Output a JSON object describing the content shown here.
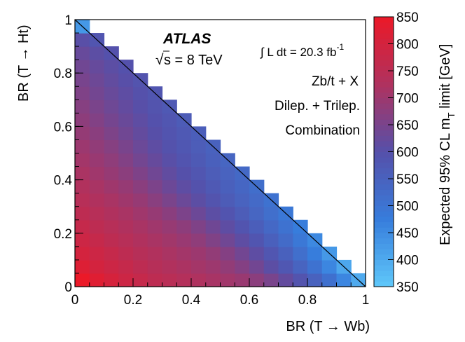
{
  "chart_data": {
    "type": "heatmap",
    "title": "",
    "xlabel": "BR (T → Wb)",
    "ylabel": "BR (T → Ht)",
    "zlabel": "Expected 95% CL m",
    "zlabel_sub": "T",
    "zlabel_suffix": " limit [GeV]",
    "xlim": [
      0,
      1
    ],
    "ylim": [
      0,
      1
    ],
    "zlim": [
      350,
      850
    ],
    "x_ticks": [
      "0",
      "0.2",
      "0.4",
      "0.6",
      "0.8",
      "1"
    ],
    "y_ticks": [
      "0",
      "0.2",
      "0.4",
      "0.6",
      "0.8",
      "1"
    ],
    "z_ticks": [
      "350",
      "400",
      "450",
      "500",
      "550",
      "600",
      "650",
      "700",
      "750",
      "800",
      "850"
    ],
    "bin_width": 0.05,
    "region": "BR(T→Wb) + BR(T→Ht) ≤ 1",
    "grid": false,
    "colorbar": "right",
    "annotations": {
      "experiment": "ATLAS",
      "energy_sqrt": "√",
      "energy_rest": "s = 8 TeV",
      "lumi_main": "∫ L dt = 20.3 fb",
      "lumi_exp": "-1",
      "line1": "Zb/t + X",
      "line2": "Dilep. + Trilep.",
      "line3": "Combination"
    },
    "z_values_by_row_yHt": [
      [
        850,
        825,
        805,
        785,
        770,
        755,
        745,
        735,
        725,
        715,
        705,
        695,
        675,
        650,
        620,
        590,
        550,
        510,
        460,
        400
      ],
      [
        820,
        800,
        785,
        770,
        755,
        740,
        730,
        720,
        710,
        700,
        685,
        665,
        640,
        610,
        580,
        545,
        505,
        460,
        405
      ],
      [
        800,
        785,
        770,
        755,
        740,
        730,
        718,
        708,
        698,
        685,
        665,
        640,
        612,
        582,
        552,
        515,
        475,
        430
      ],
      [
        785,
        770,
        755,
        742,
        728,
        716,
        706,
        694,
        680,
        660,
        637,
        612,
        585,
        555,
        525,
        490,
        455
      ],
      [
        770,
        755,
        742,
        728,
        716,
        704,
        692,
        678,
        658,
        636,
        612,
        588,
        560,
        532,
        505,
        475
      ],
      [
        755,
        742,
        728,
        716,
        704,
        690,
        674,
        654,
        632,
        610,
        588,
        565,
        540,
        515,
        490
      ],
      [
        742,
        728,
        716,
        703,
        690,
        672,
        652,
        630,
        610,
        590,
        568,
        548,
        528,
        505
      ],
      [
        730,
        716,
        703,
        690,
        674,
        654,
        632,
        612,
        594,
        574,
        556,
        538,
        518
      ],
      [
        718,
        704,
        690,
        675,
        657,
        637,
        617,
        600,
        582,
        565,
        548,
        530
      ],
      [
        708,
        694,
        680,
        662,
        642,
        623,
        605,
        588,
        572,
        556,
        540
      ],
      [
        698,
        684,
        668,
        650,
        630,
        612,
        595,
        580,
        565,
        550
      ],
      [
        688,
        673,
        656,
        638,
        620,
        603,
        588,
        574,
        560
      ],
      [
        678,
        662,
        645,
        628,
        612,
        596,
        582,
        568
      ],
      [
        668,
        652,
        635,
        619,
        604,
        590,
        576
      ],
      [
        658,
        642,
        627,
        612,
        598,
        584
      ],
      [
        648,
        633,
        618,
        604,
        590
      ],
      [
        638,
        624,
        610,
        596
      ],
      [
        625,
        610,
        596
      ],
      [
        605,
        585
      ],
      [
        430
      ]
    ]
  }
}
